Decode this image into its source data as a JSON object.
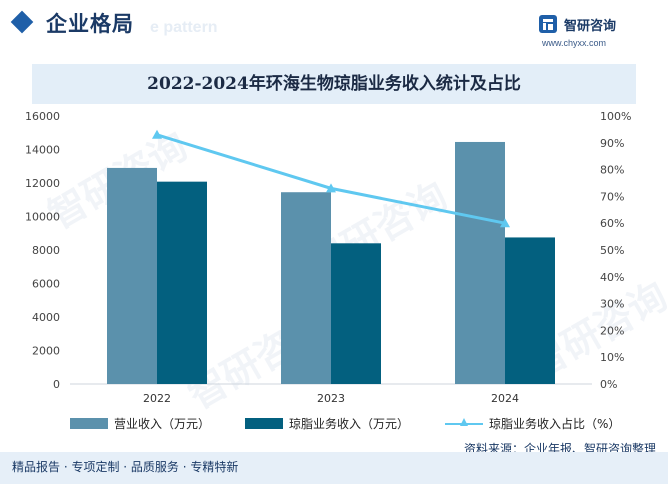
{
  "header": {
    "title": "企业格局",
    "ghost_text": "e pattern"
  },
  "brand": {
    "name": "智研咨询",
    "url": "www.chyxx.com",
    "logo_icon": "zhiyan-logo-icon"
  },
  "watermark_text": "智研咨询",
  "chart_data": {
    "type": "bar",
    "title": "2022-2024年环海生物琼脂业务收入统计及占比",
    "categories": [
      "2022",
      "2023",
      "2024"
    ],
    "series": [
      {
        "name": "营业收入（万元）",
        "type": "bar",
        "color": "#5b91ac",
        "values": [
          12900,
          11450,
          14450
        ]
      },
      {
        "name": "琼脂业务收入（万元）",
        "type": "bar",
        "color": "#03607f",
        "values": [
          12080,
          8400,
          8750
        ]
      },
      {
        "name": "琼脂业务收入占比（%）",
        "type": "line",
        "axis": "right",
        "color": "#5fc8f0",
        "values": [
          93,
          73,
          60
        ]
      }
    ],
    "y_left": {
      "min": 0,
      "max": 16000,
      "step": 2000,
      "ticks": [
        "0",
        "2000",
        "4000",
        "6000",
        "8000",
        "10000",
        "12000",
        "14000",
        "16000"
      ]
    },
    "y_right": {
      "min": 0,
      "max": 100,
      "step": 10,
      "ticks": [
        "0%",
        "10%",
        "20%",
        "30%",
        "40%",
        "50%",
        "60%",
        "70%",
        "80%",
        "90%",
        "100%"
      ]
    },
    "legend_position": "bottom",
    "grid": false
  },
  "footer": {
    "left_text": "精品报告 · 专项定制 · 品质服务 · 专精特新",
    "source_text": "资料来源：企业年报、智研咨询整理"
  }
}
